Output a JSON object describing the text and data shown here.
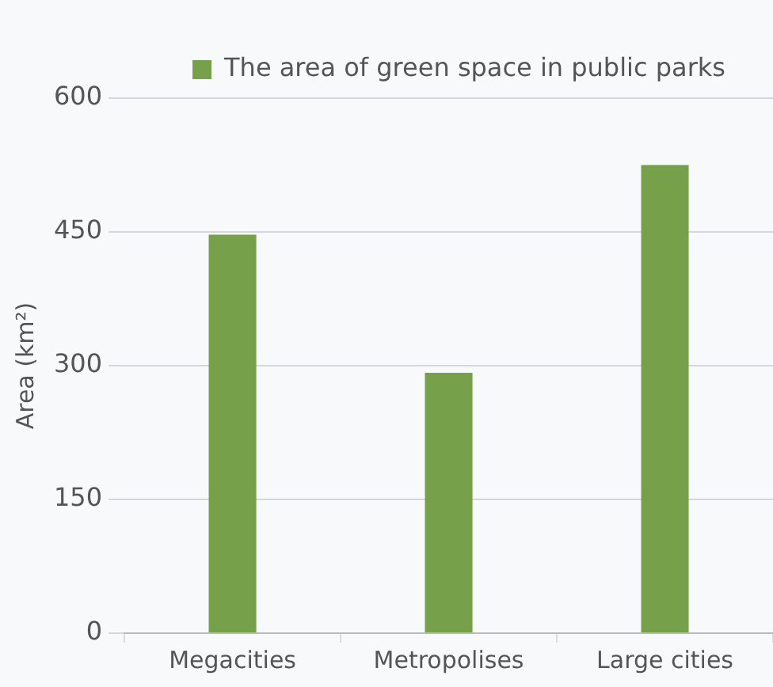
{
  "chart_data": {
    "type": "bar",
    "ylabel": "Area (km²)",
    "categories": [
      "Megacities",
      "Metropolises",
      "Large cities"
    ],
    "series": [
      {
        "name": "The area of green space in public parks",
        "color": "#76a04a",
        "values": [
          447,
          292,
          525
        ]
      }
    ],
    "ylim": [
      0,
      600
    ],
    "yticks": [
      0,
      150,
      300,
      450,
      600
    ],
    "grid": "y",
    "legend": "top"
  }
}
